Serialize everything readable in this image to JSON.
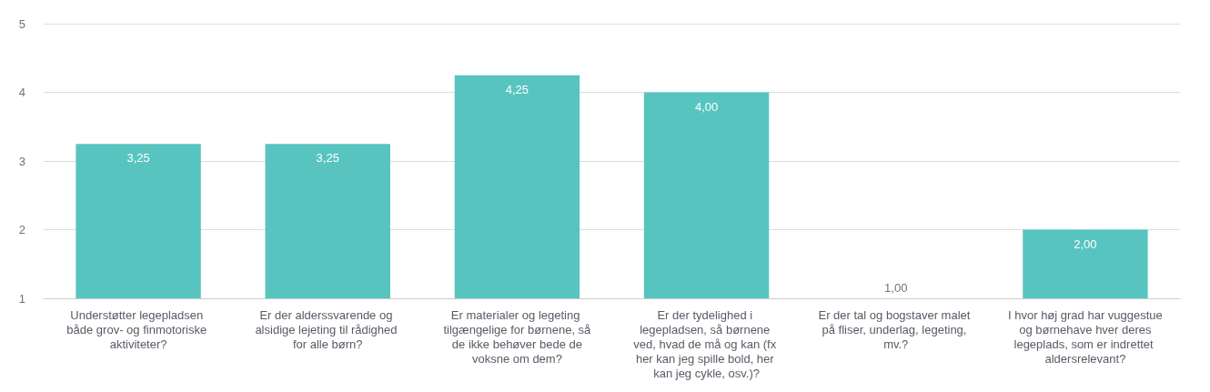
{
  "chart_data": {
    "type": "bar",
    "categories": [
      "Understøtter legepladsen både grov- og finmotoriske aktiviteter?",
      "Er der alderssvarende og alsidige lejeting til rådighed for alle børn?",
      "Er materialer og legeting tilgængelige for børnene, så de ikke behøver bede de voksne om dem?",
      "Er der tydelighed i legepladsen, så børnene ved, hvad de må og kan (fx her kan jeg spille bold, her kan jeg cykle, osv.)?",
      "Er der tal og bogstaver malet på fliser, underlag, legeting, mv.?",
      "I hvor høj grad har vuggestue og børnehave hver deres legeplads, som er indrettet aldersrelevant?"
    ],
    "values": [
      3.25,
      3.25,
      4.25,
      4.0,
      1.0,
      2.0
    ],
    "value_labels": [
      "3,25",
      "3,25",
      "4,25",
      "4,00",
      "1,00",
      "2,00"
    ],
    "color": "#57c4c0",
    "ylim": [
      1,
      5
    ],
    "yticks": [
      1,
      2,
      3,
      4,
      5
    ],
    "grid": "y"
  }
}
